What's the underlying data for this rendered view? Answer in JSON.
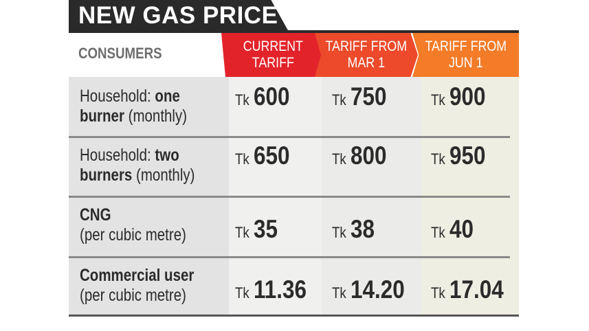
{
  "title": "NEW GAS PRICE",
  "header": {
    "consumers": "CONSUMERS",
    "columns": [
      {
        "label": "CURRENT\nTARIFF",
        "color": "#e3232a"
      },
      {
        "label": "TARIFF FROM\nMAR 1",
        "color": "#ec4a2a"
      },
      {
        "label": "TARIFF FROM\nJUN 1",
        "color": "#f47b28"
      }
    ]
  },
  "rows": [
    {
      "label_prefix": "Household: ",
      "label_bold": "one",
      "label_line2_bold": "burner",
      "label_line2_rest": " (monthly)",
      "values": [
        {
          "currency": "Tk",
          "amount": "600"
        },
        {
          "currency": "Tk",
          "amount": "750"
        },
        {
          "currency": "Tk",
          "amount": "900"
        }
      ]
    },
    {
      "label_prefix": "Household: ",
      "label_bold": "two",
      "label_line2_bold": "burners",
      "label_line2_rest": " (monthly)",
      "values": [
        {
          "currency": "Tk",
          "amount": "650"
        },
        {
          "currency": "Tk",
          "amount": "800"
        },
        {
          "currency": "Tk",
          "amount": "950"
        }
      ]
    },
    {
      "label_prefix": "",
      "label_bold": "CNG",
      "label_line2_bold": "",
      "label_line2_rest": "(per cubic metre)",
      "values": [
        {
          "currency": "Tk",
          "amount": "35"
        },
        {
          "currency": "Tk",
          "amount": "38"
        },
        {
          "currency": "Tk",
          "amount": "40"
        }
      ]
    },
    {
      "label_prefix": "",
      "label_bold": "Commercial user",
      "label_line2_bold": "",
      "label_line2_rest": "(per cubic metre)",
      "values": [
        {
          "currency": "Tk",
          "amount": "11.36"
        },
        {
          "currency": "Tk",
          "amount": "14.20"
        },
        {
          "currency": "Tk",
          "amount": "17.04"
        }
      ]
    }
  ]
}
